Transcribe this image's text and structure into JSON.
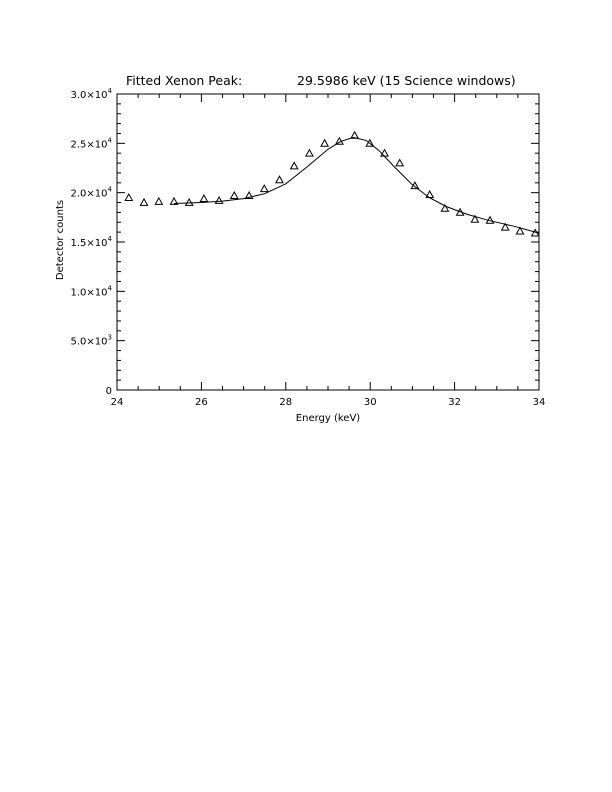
{
  "chart_data": {
    "type": "scatter",
    "title_left": "Fitted Xenon Peak:",
    "title_right": "29.5986 keV (15 Science windows)",
    "xlabel": "Energy (keV)",
    "ylabel": "Detector counts",
    "xlim": [
      24,
      34
    ],
    "ylim": [
      0,
      30000
    ],
    "x_ticks": [
      24,
      26,
      28,
      30,
      32,
      34
    ],
    "y_ticks": [
      0,
      5000,
      10000,
      15000,
      20000,
      25000,
      30000
    ],
    "y_tick_labels": [
      {
        "mant": "0",
        "exp": ""
      },
      {
        "mant": "5.0×10",
        "exp": "3"
      },
      {
        "mant": "1.0×10",
        "exp": "4"
      },
      {
        "mant": "1.5×10",
        "exp": "4"
      },
      {
        "mant": "2.0×10",
        "exp": "4"
      },
      {
        "mant": "2.5×10",
        "exp": "4"
      },
      {
        "mant": "3.0×10",
        "exp": "4"
      }
    ],
    "series": [
      {
        "marker": "triangle",
        "x": [
          24.28,
          24.64,
          24.99,
          25.35,
          25.71,
          26.06,
          26.42,
          26.78,
          27.13,
          27.49,
          27.85,
          28.2,
          28.56,
          28.92,
          29.27,
          29.63,
          29.99,
          30.34,
          30.7,
          31.06,
          31.41,
          31.77,
          32.13,
          32.48,
          32.84,
          33.2,
          33.55,
          33.91
        ],
        "y": [
          19500,
          19000,
          19100,
          19100,
          19000,
          19400,
          19200,
          19700,
          19700,
          20400,
          21300,
          22700,
          24000,
          25000,
          25200,
          25800,
          25000,
          24000,
          23000,
          20700,
          19800,
          18400,
          18000,
          17300,
          17200,
          16500,
          16100,
          15900
        ]
      },
      {
        "style": "line",
        "x": [
          25.35,
          26.0,
          26.5,
          27.0,
          27.5,
          28.0,
          28.5,
          29.0,
          29.3,
          29.6,
          29.9,
          30.2,
          30.6,
          31.0,
          31.4,
          31.8,
          32.3,
          32.8,
          33.4,
          34.0
        ],
        "y": [
          18900,
          19000,
          19150,
          19400,
          19900,
          20900,
          22600,
          24400,
          25200,
          25600,
          25300,
          24300,
          22500,
          20800,
          19500,
          18600,
          17800,
          17200,
          16600,
          15900
        ]
      }
    ]
  }
}
